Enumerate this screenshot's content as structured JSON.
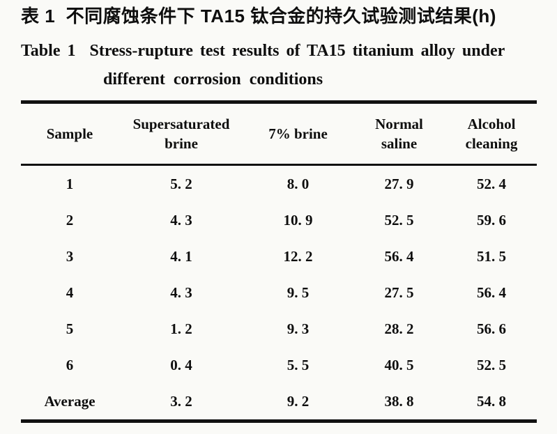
{
  "document": {
    "background_color": "#fafaf7",
    "text_color": "#0e0e0e",
    "rule_color": "#111111"
  },
  "title": {
    "zh": "表 1  不同腐蚀条件下 TA15 钛合金的持久试验测试结果(h)",
    "en_line1": "Table 1  Stress-rupture test results of TA15 titanium alloy under",
    "en_line2": "different corrosion conditions"
  },
  "table": {
    "columns": [
      {
        "label_lines": [
          "Sample"
        ]
      },
      {
        "label_lines": [
          "Supersaturated",
          "brine"
        ]
      },
      {
        "label_lines": [
          "7% brine"
        ]
      },
      {
        "label_lines": [
          "Normal",
          "saline"
        ]
      },
      {
        "label_lines": [
          "Alcohol",
          "cleaning"
        ]
      }
    ],
    "rows": [
      {
        "cells": [
          "1",
          "5. 2",
          "8. 0",
          "27. 9",
          "52. 4"
        ]
      },
      {
        "cells": [
          "2",
          "4. 3",
          "10. 9",
          "52. 5",
          "59. 6"
        ]
      },
      {
        "cells": [
          "3",
          "4. 1",
          "12. 2",
          "56. 4",
          "51. 5"
        ]
      },
      {
        "cells": [
          "4",
          "4. 3",
          "9. 5",
          "27. 5",
          "56. 4"
        ]
      },
      {
        "cells": [
          "5",
          "1. 2",
          "9. 3",
          "28. 2",
          "56. 6"
        ]
      },
      {
        "cells": [
          "6",
          "0. 4",
          "5. 5",
          "40. 5",
          "52. 5"
        ]
      },
      {
        "cells": [
          "Average",
          "3. 2",
          "9. 2",
          "38. 8",
          "54. 8"
        ]
      }
    ]
  },
  "chart_data": {
    "type": "table",
    "title_zh": "表 1  不同腐蚀条件下 TA15 钛合金的持久试验测试结果(h)",
    "title_en": "Table 1 Stress-rupture test results of TA15 titanium alloy under different corrosion conditions",
    "unit": "h",
    "columns": [
      "Sample",
      "Supersaturated brine",
      "7% brine",
      "Normal saline",
      "Alcohol cleaning"
    ],
    "rows": [
      [
        "1",
        5.2,
        8.0,
        27.9,
        52.4
      ],
      [
        "2",
        4.3,
        10.9,
        52.5,
        59.6
      ],
      [
        "3",
        4.1,
        12.2,
        56.4,
        51.5
      ],
      [
        "4",
        4.3,
        9.5,
        27.5,
        56.4
      ],
      [
        "5",
        1.2,
        9.3,
        28.2,
        56.6
      ],
      [
        "6",
        0.4,
        5.5,
        40.5,
        52.5
      ],
      [
        "Average",
        3.2,
        9.2,
        38.8,
        54.8
      ]
    ]
  }
}
